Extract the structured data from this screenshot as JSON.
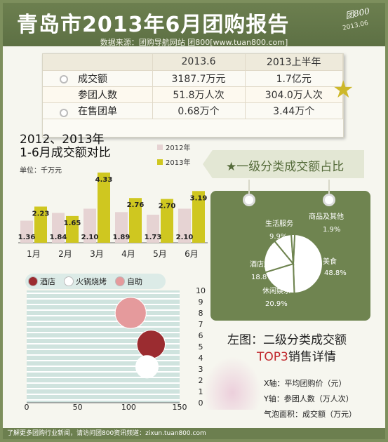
{
  "header": {
    "title": "青岛市2013年6月团购报告",
    "stamp_logo": "团800",
    "stamp_date": "2013.06",
    "source": "数据来源：团购导航网站 团800[www.tuan800.com]"
  },
  "summary_table": {
    "columns": [
      "",
      "2013.6",
      "2013上半年"
    ],
    "rows": [
      {
        "label": "成交额",
        "c1": "3187.7万元",
        "c2": "1.7亿元"
      },
      {
        "label": "参团人数",
        "c1": "51.8万人次",
        "c2": "304.0万人次"
      },
      {
        "label": "在售团单",
        "c1": "0.68万个",
        "c2": "3.44万个"
      }
    ]
  },
  "bar_section": {
    "title_line1": "2012、2013年",
    "title_line2": "1-6月成交额对比",
    "unit": "单位：千万元",
    "legend_2012": "2012年",
    "legend_2013": "2013年"
  },
  "pie_section": {
    "banner": "★一级分类成交额占比"
  },
  "bubble_section": {
    "legend": [
      "酒店",
      "火锅烧烤",
      "自助"
    ]
  },
  "notes": {
    "line1": "左图：二级分类成交额",
    "line2_red": "TOP3",
    "line2_rest": "销售详情",
    "x_axis": "X轴：平均团购价（元）",
    "y_axis": "Y轴：参团人数（万人次）",
    "bubble_area": "气泡面积：成交额（万元）"
  },
  "footer": "了解更多团购行业新闻，请访问团800资讯频道：zixun.tuan800.com",
  "colors": {
    "bg_green": "#6c7f4f",
    "bar_2012": "#e6d3d3",
    "bar_2013": "#cfc720",
    "bubble_hotel": "#9b2c30",
    "bubble_hotpot": "#ffffff",
    "bubble_buffet": "#e59a9c",
    "highlight_red": "#c0262b"
  },
  "chart_data": [
    {
      "type": "bar",
      "title": "2012、2013年 1-6月成交额对比",
      "ylabel": "单位：千万元",
      "categories": [
        "1月",
        "2月",
        "3月",
        "4月",
        "5月",
        "6月"
      ],
      "series": [
        {
          "name": "2012年",
          "values": [
            1.36,
            1.84,
            2.1,
            1.89,
            1.73,
            2.1
          ]
        },
        {
          "name": "2013年",
          "values": [
            2.23,
            1.65,
            4.33,
            2.76,
            2.7,
            3.19
          ]
        }
      ],
      "legend": "top-right"
    },
    {
      "type": "pie",
      "title": "一级分类成交额占比",
      "slices": [
        {
          "label": "美食",
          "value": 48.8
        },
        {
          "label": "休闲娱乐",
          "value": 20.9
        },
        {
          "label": "酒店旅游",
          "value": 18.8
        },
        {
          "label": "生活服务",
          "value": 9.9
        },
        {
          "label": "商品及其他",
          "value": 1.9
        }
      ]
    },
    {
      "type": "scatter",
      "subtype": "bubble",
      "xlim": [
        0,
        150
      ],
      "ylim": [
        0,
        10
      ],
      "xticks": [
        0,
        50,
        100,
        150
      ],
      "yticks": [
        0,
        1,
        2,
        3,
        4,
        5,
        6,
        7,
        8,
        9,
        10
      ],
      "series": [
        {
          "name": "酒店",
          "x": 122,
          "y": 5.2,
          "size": 3.5
        },
        {
          "name": "火锅烧烤",
          "x": 118,
          "y": 3.2,
          "size": 2.2
        },
        {
          "name": "自助",
          "x": 102,
          "y": 8.0,
          "size": 4.2
        }
      ],
      "legend": "top"
    }
  ]
}
